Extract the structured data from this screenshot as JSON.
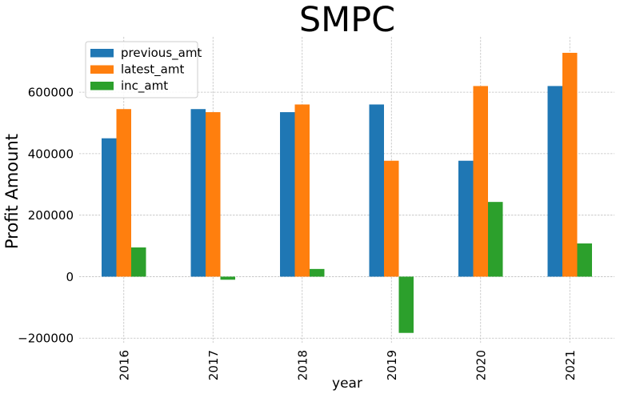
{
  "chart_data": {
    "type": "bar",
    "title": "SMPC",
    "xlabel": "year",
    "ylabel": "Profit Amount",
    "categories": [
      "2016",
      "2017",
      "2018",
      "2019",
      "2020",
      "2021"
    ],
    "series": [
      {
        "name": "previous_amt",
        "color": "#1f77b4",
        "values": [
          450000,
          545000,
          535000,
          560000,
          377000,
          620000
        ]
      },
      {
        "name": "latest_amt",
        "color": "#ff7f0e",
        "values": [
          545000,
          535000,
          560000,
          377000,
          620000,
          728000
        ]
      },
      {
        "name": "inc_amt",
        "color": "#2ca02c",
        "values": [
          95000,
          -10000,
          25000,
          -183000,
          243000,
          108000
        ]
      }
    ],
    "ylim": [
      -215000,
      780000
    ],
    "yticks": [
      -200000,
      0,
      200000,
      400000,
      600000
    ],
    "ytick_labels": [
      "−200000",
      "0",
      "200000",
      "400000",
      "600000"
    ],
    "grid": true,
    "legend_position": "top-left"
  }
}
